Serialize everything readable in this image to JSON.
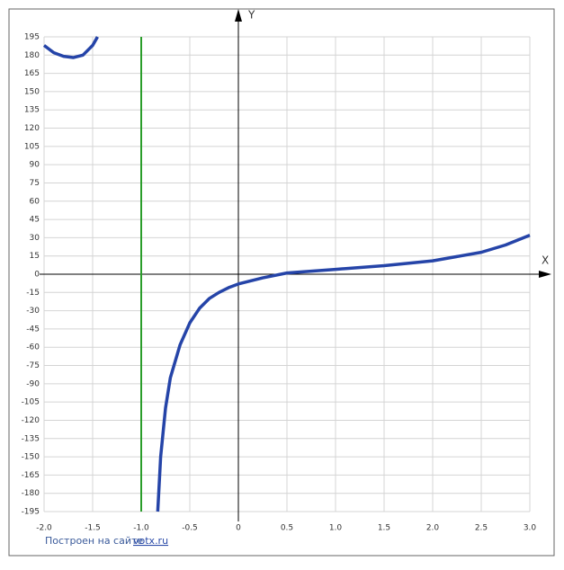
{
  "chart_data": {
    "type": "line",
    "x_label": "X",
    "y_label": "Y",
    "footer": {
      "text": "Построен на сайте",
      "link": "votx.ru"
    },
    "xlim": [
      -2,
      3
    ],
    "xticks": [
      {
        "value": -2,
        "label": "-2.0"
      },
      {
        "value": -1.5,
        "label": "-1.5"
      },
      {
        "value": -1,
        "label": "-1.0"
      },
      {
        "value": -0.5,
        "label": "-0.5"
      },
      0,
      {
        "value": 0.5,
        "label": "0.5"
      },
      {
        "value": 1,
        "label": "1.0"
      },
      {
        "value": 1.5,
        "label": "1.5"
      },
      {
        "value": 2,
        "label": "2.0"
      },
      {
        "value": 2.5,
        "label": "2.5"
      },
      {
        "value": 3,
        "label": "3.0"
      }
    ],
    "ylim": [
      -195,
      195
    ],
    "yticks": [
      -195,
      -180,
      -165,
      -150,
      -135,
      -120,
      -105,
      -90,
      -75,
      -60,
      -45,
      -30,
      -15,
      0,
      15,
      30,
      45,
      60,
      75,
      90,
      105,
      120,
      135,
      150,
      165,
      180,
      195
    ],
    "grid": true,
    "vertical_line": {
      "x": -1,
      "color": "#2a9d2a"
    },
    "series": [
      {
        "color": "#2544a8",
        "x": [
          -2,
          -1.9,
          -1.8,
          -1.7,
          -1.6,
          -1.5,
          -1.45,
          -1.2,
          -0.83,
          -0.8,
          -0.75,
          -0.7,
          -0.6,
          -0.5,
          -0.4,
          -0.3,
          -0.2,
          -0.1,
          0,
          0.25,
          0.5,
          0.75,
          1,
          1.5,
          2,
          2.5,
          2.75,
          3
        ],
        "values": [
          188,
          182,
          179,
          178,
          180,
          188,
          195,
          null,
          -195,
          -150,
          -110,
          -85,
          -58,
          -40,
          -28,
          -20,
          -15,
          -11,
          -8,
          -3,
          1,
          2.5,
          4,
          7,
          11,
          18,
          24,
          32
        ]
      }
    ]
  }
}
